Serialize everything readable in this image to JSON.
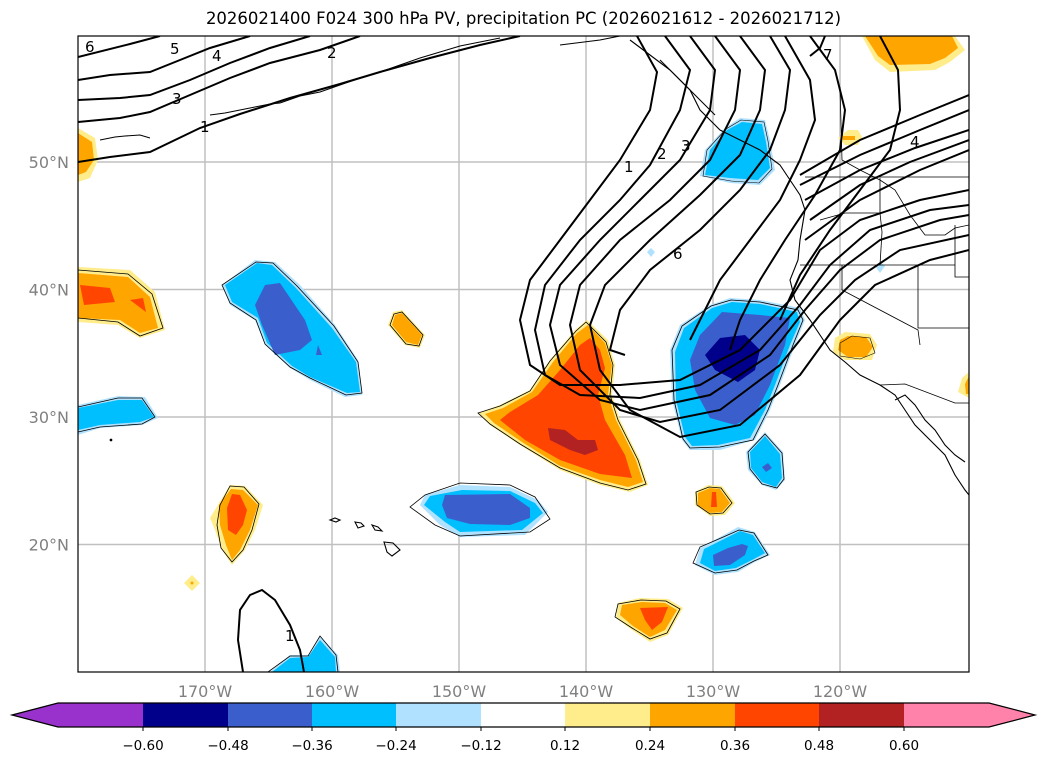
{
  "title": "2026021400 F024 300 hPa PV, precipitation PC (2026021612 - 2026021712)",
  "map": {
    "lon_range": [
      -180,
      -110
    ],
    "lat_range": [
      10,
      59
    ],
    "lon_ticks": [
      {
        "value": -170,
        "label": "170°W"
      },
      {
        "value": -160,
        "label": "160°W"
      },
      {
        "value": -150,
        "label": "150°W"
      },
      {
        "value": -140,
        "label": "140°W"
      },
      {
        "value": -130,
        "label": "130°W"
      },
      {
        "value": -120,
        "label": "120°W"
      }
    ],
    "lat_ticks": [
      {
        "value": 50,
        "label": "50°N"
      },
      {
        "value": 40,
        "label": "40°N"
      },
      {
        "value": 30,
        "label": "30°N"
      },
      {
        "value": 20,
        "label": "20°N"
      }
    ],
    "grid_color": "#c0c0c0",
    "tick_color": "#808080"
  },
  "pv_contour_labels": [
    "6",
    "5",
    "4",
    "3",
    "2",
    "1",
    "1",
    "2",
    "3",
    "6",
    "7",
    "4",
    "1"
  ],
  "colorbar": {
    "bounds": [
      "−0.60",
      "−0.48",
      "−0.36",
      "−0.24",
      "−0.12",
      "0.12",
      "0.24",
      "0.36",
      "0.48",
      "0.60"
    ],
    "colors": [
      "#9932cc",
      "#00008b",
      "#3a5fcd",
      "#00bfff",
      "#b0e2ff",
      "#ffffff",
      "#ffec8b",
      "#ffa500",
      "#ff4500",
      "#b22222",
      "#ff82ab"
    ]
  }
}
